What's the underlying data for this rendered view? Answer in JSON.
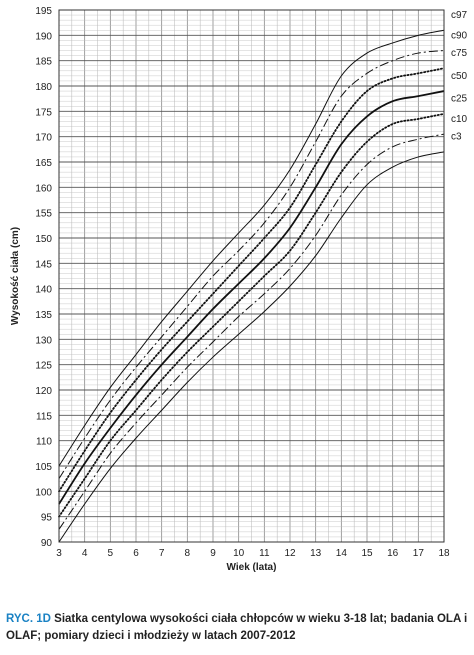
{
  "chart_data": {
    "type": "line",
    "title": "",
    "xlabel": "Wiek (lata)",
    "ylabel": "Wysokość ciała (cm)",
    "xlim": [
      3,
      18
    ],
    "ylim": [
      90,
      195
    ],
    "xticks": [
      "3",
      "4",
      "5",
      "6",
      "7",
      "8",
      "9",
      "10",
      "11",
      "12",
      "13",
      "14",
      "15",
      "16",
      "17",
      "18"
    ],
    "yticks": [
      "90",
      "95",
      "100",
      "105",
      "110",
      "115",
      "120",
      "125",
      "130",
      "135",
      "140",
      "145",
      "150",
      "155",
      "160",
      "165",
      "170",
      "175",
      "180",
      "185",
      "190",
      "195"
    ],
    "grid": true,
    "legend": "right-end labels",
    "series": [
      {
        "name": "c97",
        "style": "solid",
        "width": 1.0,
        "x": [
          3,
          4,
          5,
          6,
          7,
          8,
          9,
          10,
          11,
          12,
          13,
          14,
          15,
          16,
          17,
          18
        ],
        "y": [
          105,
          113,
          120.5,
          127,
          133.5,
          139.5,
          145.5,
          151,
          156.5,
          163.5,
          172.5,
          182,
          186.5,
          188.5,
          190,
          191
        ]
      },
      {
        "name": "c90",
        "style": "dashdot",
        "width": 1.0,
        "x": [
          3,
          4,
          5,
          6,
          7,
          8,
          9,
          10,
          11,
          12,
          13,
          14,
          15,
          16,
          17,
          18
        ],
        "y": [
          102.5,
          110.5,
          118,
          124.5,
          130.5,
          136.5,
          142.5,
          147.5,
          153,
          160,
          169,
          178,
          182.5,
          185,
          186.5,
          187
        ]
      },
      {
        "name": "c75",
        "style": "dotted",
        "width": 1.8,
        "x": [
          3,
          4,
          5,
          6,
          7,
          8,
          9,
          10,
          11,
          12,
          13,
          14,
          15,
          16,
          17,
          18
        ],
        "y": [
          100,
          108,
          115.5,
          122,
          128,
          133.5,
          139,
          144.5,
          150,
          156,
          164.5,
          173,
          179,
          181.5,
          182.5,
          183.5
        ]
      },
      {
        "name": "c50",
        "style": "solid",
        "width": 1.8,
        "x": [
          3,
          4,
          5,
          6,
          7,
          8,
          9,
          10,
          11,
          12,
          13,
          14,
          15,
          16,
          17,
          18
        ],
        "y": [
          97.5,
          105.5,
          112.5,
          119,
          125,
          130.5,
          136,
          141,
          146,
          152,
          160,
          168.5,
          174,
          177,
          178,
          179
        ]
      },
      {
        "name": "c25",
        "style": "dotted",
        "width": 1.8,
        "x": [
          3,
          4,
          5,
          6,
          7,
          8,
          9,
          10,
          11,
          12,
          13,
          14,
          15,
          16,
          17,
          18
        ],
        "y": [
          95,
          102.5,
          110,
          116,
          122,
          127.5,
          132.5,
          137.5,
          142.5,
          147.5,
          155,
          163,
          169,
          172.5,
          173.5,
          174.5
        ]
      },
      {
        "name": "c10",
        "style": "dashdot",
        "width": 1.0,
        "x": [
          3,
          4,
          5,
          6,
          7,
          8,
          9,
          10,
          11,
          12,
          13,
          14,
          15,
          16,
          17,
          18
        ],
        "y": [
          92.5,
          100,
          107.5,
          113.5,
          119,
          124.5,
          129.5,
          134.5,
          139,
          144,
          150.5,
          158.5,
          164.5,
          168,
          169.5,
          170.5
        ]
      },
      {
        "name": "c3",
        "style": "solid",
        "width": 1.0,
        "x": [
          3,
          4,
          5,
          6,
          7,
          8,
          9,
          10,
          11,
          12,
          13,
          14,
          15,
          16,
          17,
          18
        ],
        "y": [
          90,
          97.5,
          104.5,
          110.5,
          116,
          121.5,
          126.5,
          131,
          135.5,
          140.5,
          146.5,
          154,
          160.5,
          164,
          166,
          167
        ]
      }
    ]
  },
  "caption": {
    "lead": "RYC. 1D",
    "text": " Siatka centylowa wysokości ciała chłopców w wieku 3-18 lat; badania OLA i OLAF; pomiary dzieci i młodzieży w latach 2007-2012"
  }
}
